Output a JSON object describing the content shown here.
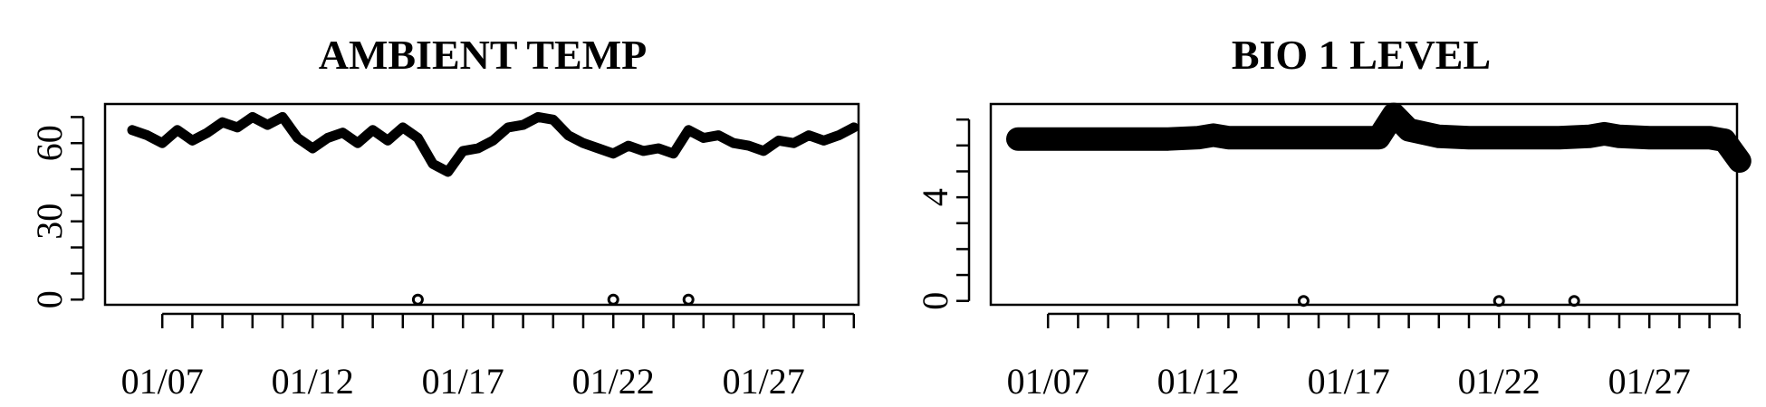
{
  "chart_data": [
    {
      "type": "line",
      "title": "AMBIENT TEMP",
      "xlabel": "",
      "ylabel": "",
      "x_tick_labels": [
        "01/07",
        "01/12",
        "01/17",
        "01/22",
        "01/27"
      ],
      "y_tick_labels": [
        "0",
        "30",
        "60"
      ],
      "ylim": [
        -2,
        75
      ],
      "xlim": [
        "01/06",
        "01/30"
      ],
      "grid": false,
      "series": [
        {
          "x": [
            "01/06",
            "01/06 12h",
            "01/07",
            "01/07 12h",
            "01/08",
            "01/08 12h",
            "01/09",
            "01/09 12h",
            "01/10",
            "01/10 12h",
            "01/11",
            "01/11 12h",
            "01/12",
            "01/12 12h",
            "01/13",
            "01/13 12h",
            "01/14",
            "01/14 12h",
            "01/15",
            "01/15 12h",
            "01/16",
            "01/16 12h",
            "01/17",
            "01/17 12h",
            "01/18",
            "01/18 12h",
            "01/19",
            "01/19 12h",
            "01/20",
            "01/20 12h",
            "01/21",
            "01/21 12h",
            "01/22",
            "01/22 12h",
            "01/23",
            "01/23 12h",
            "01/24",
            "01/24 12h",
            "01/25",
            "01/25 12h",
            "01/26",
            "01/26 12h",
            "01/27",
            "01/27 12h",
            "01/28",
            "01/28 12h",
            "01/29",
            "01/29 12h",
            "01/30"
          ],
          "values": [
            65,
            63,
            60,
            65,
            61,
            64,
            68,
            66,
            70,
            67,
            70,
            62,
            58,
            62,
            64,
            60,
            65,
            61,
            66,
            62,
            52,
            49,
            57,
            58,
            61,
            66,
            67,
            70,
            69,
            63,
            60,
            58,
            56,
            59,
            57,
            58,
            56,
            65,
            62,
            63,
            60,
            59,
            57,
            61,
            60,
            63,
            61,
            63,
            66
          ]
        }
      ],
      "outliers": [
        {
          "x": "01/15 12h",
          "y": 0
        },
        {
          "x": "01/22",
          "y": 0
        },
        {
          "x": "01/24 12h",
          "y": 0
        }
      ]
    },
    {
      "type": "line",
      "title": "BIO 1 LEVEL",
      "xlabel": "",
      "ylabel": "",
      "x_tick_labels": [
        "01/07",
        "01/12",
        "01/17",
        "01/22",
        "01/27"
      ],
      "y_tick_labels": [
        "0",
        "4"
      ],
      "ylim": [
        -0.15,
        7.6
      ],
      "xlim": [
        "01/06",
        "01/30"
      ],
      "grid": false,
      "series": [
        {
          "x": [
            "01/06",
            "01/07",
            "01/08",
            "01/09",
            "01/10",
            "01/11",
            "01/12",
            "01/12 12h",
            "01/13",
            "01/14",
            "01/15",
            "01/16",
            "01/17",
            "01/18",
            "01/18 12h",
            "01/19",
            "01/20",
            "01/21",
            "01/22",
            "01/23",
            "01/24",
            "01/25",
            "01/25 12h",
            "01/26",
            "01/27",
            "01/28",
            "01/29",
            "01/29 12h",
            "01/30"
          ],
          "values": [
            6.25,
            6.25,
            6.25,
            6.25,
            6.25,
            6.25,
            6.3,
            6.4,
            6.3,
            6.3,
            6.3,
            6.3,
            6.3,
            6.3,
            7.2,
            6.6,
            6.35,
            6.3,
            6.3,
            6.3,
            6.3,
            6.35,
            6.45,
            6.35,
            6.3,
            6.3,
            6.3,
            6.2,
            5.4
          ]
        }
      ],
      "outliers": [
        {
          "x": "01/15 12h",
          "y": 0
        },
        {
          "x": "01/22",
          "y": 0
        },
        {
          "x": "01/24 12h",
          "y": 0
        }
      ]
    }
  ]
}
